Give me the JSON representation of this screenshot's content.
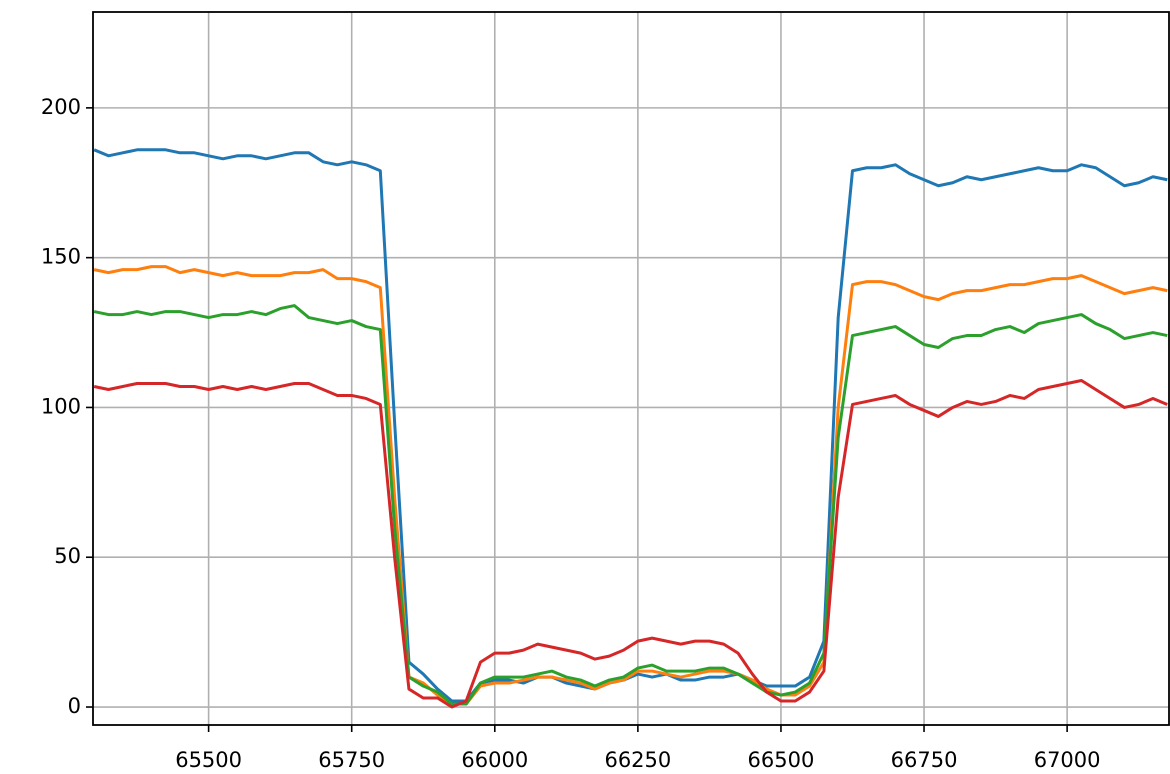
{
  "chart_data": {
    "type": "line",
    "x": [
      65300,
      65325,
      65350,
      65375,
      65400,
      65425,
      65450,
      65475,
      65500,
      65525,
      65550,
      65575,
      65600,
      65625,
      65650,
      65675,
      65700,
      65725,
      65750,
      65775,
      65800,
      65825,
      65850,
      65875,
      65900,
      65925,
      65950,
      65975,
      66000,
      66025,
      66050,
      66075,
      66100,
      66125,
      66150,
      66175,
      66200,
      66225,
      66250,
      66275,
      66300,
      66325,
      66350,
      66375,
      66400,
      66425,
      66450,
      66475,
      66500,
      66525,
      66550,
      66575,
      66600,
      66625,
      66650,
      66675,
      66700,
      66725,
      66750,
      66775,
      66800,
      66825,
      66850,
      66875,
      66900,
      66925,
      66950,
      66975,
      67000,
      67025,
      67050,
      67075,
      67100,
      67125,
      67150,
      67175
    ],
    "series": [
      {
        "color": "#1f77b4",
        "values": [
          186,
          184,
          185,
          186,
          186,
          186,
          185,
          185,
          184,
          183,
          184,
          184,
          183,
          184,
          185,
          185,
          182,
          181,
          182,
          181,
          179,
          95,
          15,
          11,
          6,
          2,
          2,
          8,
          9,
          9,
          8,
          10,
          10,
          8,
          7,
          6,
          8,
          9,
          11,
          10,
          11,
          9,
          9,
          10,
          10,
          11,
          9,
          7,
          7,
          7,
          10,
          22,
          130,
          179,
          180,
          180,
          181,
          178,
          176,
          174,
          175,
          177,
          176,
          177,
          178,
          179,
          180,
          179,
          179,
          181,
          180,
          177,
          174,
          175,
          177,
          176
        ]
      },
      {
        "color": "#ff7f0e",
        "values": [
          146,
          145,
          146,
          146,
          147,
          147,
          145,
          146,
          145,
          144,
          145,
          144,
          144,
          144,
          145,
          145,
          146,
          143,
          143,
          142,
          140,
          70,
          10,
          8,
          4,
          1,
          1,
          7,
          8,
          8,
          9,
          10,
          10,
          9,
          8,
          6,
          8,
          9,
          12,
          12,
          11,
          10,
          11,
          12,
          12,
          11,
          9,
          6,
          4,
          4,
          7,
          15,
          100,
          141,
          142,
          142,
          141,
          139,
          137,
          136,
          138,
          139,
          139,
          140,
          141,
          141,
          142,
          143,
          143,
          144,
          142,
          140,
          138,
          139,
          140,
          139
        ]
      },
      {
        "color": "#2ca02c",
        "values": [
          132,
          131,
          131,
          132,
          131,
          132,
          132,
          131,
          130,
          131,
          131,
          132,
          131,
          133,
          134,
          130,
          129,
          128,
          129,
          127,
          126,
          60,
          10,
          7,
          5,
          1,
          1,
          8,
          10,
          10,
          10,
          11,
          12,
          10,
          9,
          7,
          9,
          10,
          13,
          14,
          12,
          12,
          12,
          13,
          13,
          11,
          8,
          5,
          4,
          5,
          8,
          18,
          90,
          124,
          125,
          126,
          127,
          124,
          121,
          120,
          123,
          124,
          124,
          126,
          127,
          125,
          128,
          129,
          130,
          131,
          128,
          126,
          123,
          124,
          125,
          124
        ]
      },
      {
        "color": "#d62728",
        "values": [
          107,
          106,
          107,
          108,
          108,
          108,
          107,
          107,
          106,
          107,
          106,
          107,
          106,
          107,
          108,
          108,
          106,
          104,
          104,
          103,
          101,
          50,
          6,
          3,
          3,
          0,
          2,
          15,
          18,
          18,
          19,
          21,
          20,
          19,
          18,
          16,
          17,
          19,
          22,
          23,
          22,
          21,
          22,
          22,
          21,
          18,
          11,
          5,
          2,
          2,
          5,
          12,
          70,
          101,
          102,
          103,
          104,
          101,
          99,
          97,
          100,
          102,
          101,
          102,
          104,
          103,
          106,
          107,
          108,
          109,
          106,
          103,
          100,
          101,
          103,
          101
        ]
      }
    ],
    "xlim": [
      65298,
      67178
    ],
    "ylim": [
      -6,
      232
    ],
    "xticks": [
      65500,
      65750,
      66000,
      66250,
      66500,
      66750,
      67000
    ],
    "yticks": [
      0,
      50,
      100,
      150,
      200
    ],
    "grid": true
  }
}
